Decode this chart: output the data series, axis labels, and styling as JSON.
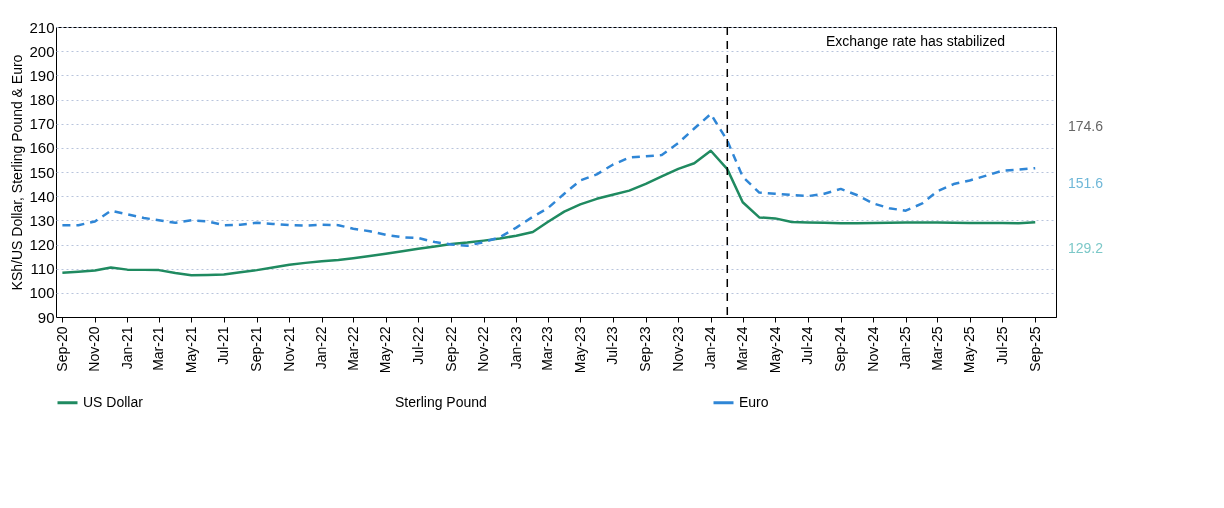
{
  "chart_data": {
    "type": "line",
    "ylabel": "KSh/US Dollar, Sterling Pound & Euro",
    "x": [
      "2020-09",
      "2020-10",
      "2020-11",
      "2020-12",
      "2021-01",
      "2021-02",
      "2021-03",
      "2021-04",
      "2021-05",
      "2021-06",
      "2021-07",
      "2021-08",
      "2021-09",
      "2021-10",
      "2021-11",
      "2021-12",
      "2022-01",
      "2022-02",
      "2022-03",
      "2022-04",
      "2022-05",
      "2022-06",
      "2022-07",
      "2022-08",
      "2022-09",
      "2022-10",
      "2022-11",
      "2022-12",
      "2023-01",
      "2023-02",
      "2023-03",
      "2023-04",
      "2023-05",
      "2023-06",
      "2023-07",
      "2023-08",
      "2023-09",
      "2023-10",
      "2023-11",
      "2023-12",
      "2024-01",
      "2024-02",
      "2024-03",
      "2024-04",
      "2024-05",
      "2024-06",
      "2024-07",
      "2024-08",
      "2024-09",
      "2024-10",
      "2024-11",
      "2024-12",
      "2025-01",
      "2025-02",
      "2025-03",
      "2025-04",
      "2025-05",
      "2025-06",
      "2025-07",
      "2025-08",
      "2025-09"
    ],
    "series": [
      {
        "name": "US Dollar",
        "color": "#1f8a60",
        "line_style": "solid",
        "values": [
          108.3,
          108.7,
          109.2,
          110.5,
          109.6,
          109.5,
          109.4,
          108.2,
          107.3,
          107.4,
          107.6,
          108.5,
          109.4,
          110.5,
          111.6,
          112.4,
          113.1,
          113.6,
          114.3,
          115.2,
          116.2,
          117.2,
          118.2,
          119.2,
          120.2,
          120.8,
          121.6,
          122.5,
          123.6,
          125.2,
          129.3,
          133.6,
          136.6,
          138.9,
          140.6,
          142.3,
          145.1,
          148.2,
          151.3,
          153.6,
          158.8,
          151.2,
          137.5,
          131.2,
          130.8,
          129.3,
          129.1,
          129,
          128.8,
          128.8,
          128.9,
          129,
          129.1,
          129.1,
          129.1,
          129,
          128.9,
          128.9,
          128.9,
          128.8,
          129.2
        ]
      },
      {
        "name": "Sterling Pound",
        "values": [
          null,
          null,
          null,
          null,
          null,
          null,
          null,
          null,
          null,
          null,
          null,
          null,
          null,
          null,
          null,
          null,
          null,
          null,
          null,
          null,
          null,
          null,
          null,
          null,
          null,
          null,
          null,
          null,
          null,
          null,
          null,
          null,
          null,
          null,
          null,
          null,
          null,
          null,
          null,
          null,
          null,
          null,
          null,
          null,
          null,
          null,
          null,
          null,
          null,
          null,
          null,
          null,
          null,
          null,
          null,
          null,
          null,
          null,
          null,
          null,
          null
        ]
      },
      {
        "name": "Euro",
        "color": "#2f86d6",
        "line_style": "dashed",
        "values": [
          128,
          128,
          129.5,
          134,
          132.5,
          131,
          130,
          129,
          130,
          129.5,
          128,
          128.2,
          129,
          128.5,
          128,
          127.8,
          128.2,
          128,
          126.5,
          125.5,
          124,
          123,
          122.7,
          121,
          120,
          119.5,
          121,
          123,
          127,
          131.5,
          135,
          141,
          146.5,
          149,
          153,
          156,
          156.5,
          157,
          162,
          168,
          174,
          163,
          148,
          141.5,
          141,
          140.5,
          140,
          141,
          143,
          140.5,
          137,
          135,
          134,
          137,
          142,
          145,
          146.5,
          148.5,
          150.5,
          151,
          151.6
        ]
      }
    ],
    "xlim": [
      "2020-08-20",
      "2025-10-10"
    ],
    "xticks": [
      {
        "value": "2020-09",
        "label": "Sep-20"
      },
      {
        "value": "2020-11",
        "label": "Nov-20"
      },
      {
        "value": "2021-01",
        "label": "Jan-21"
      },
      {
        "value": "2021-03",
        "label": "Mar-21"
      },
      {
        "value": "2021-05",
        "label": "May-21"
      },
      {
        "value": "2021-07",
        "label": "Jul-21"
      },
      {
        "value": "2021-09",
        "label": "Sep-21"
      },
      {
        "value": "2021-11",
        "label": "Nov-21"
      },
      {
        "value": "2022-01",
        "label": "Jan-22"
      },
      {
        "value": "2022-03",
        "label": "Mar-22"
      },
      {
        "value": "2022-05",
        "label": "May-22"
      },
      {
        "value": "2022-07",
        "label": "Jul-22"
      },
      {
        "value": "2022-09",
        "label": "Sep-22"
      },
      {
        "value": "2022-11",
        "label": "Nov-22"
      },
      {
        "value": "2023-01",
        "label": "Jan-23"
      },
      {
        "value": "2023-03",
        "label": "Mar-23"
      },
      {
        "value": "2023-05",
        "label": "May-23"
      },
      {
        "value": "2023-07",
        "label": "Jul-23"
      },
      {
        "value": "2023-09",
        "label": "Sep-23"
      },
      {
        "value": "2023-11",
        "label": "Nov-23"
      },
      {
        "value": "2024-01",
        "label": "Jan-24"
      },
      {
        "value": "2024-03",
        "label": "Mar-24"
      },
      {
        "value": "2024-05",
        "label": "May-24"
      },
      {
        "value": "2024-07",
        "label": "Jul-24"
      },
      {
        "value": "2024-09",
        "label": "Sep-24"
      },
      {
        "value": "2024-11",
        "label": "Nov-24"
      },
      {
        "value": "2025-01",
        "label": "Jan-25"
      },
      {
        "value": "2025-03",
        "label": "Mar-25"
      },
      {
        "value": "2025-05",
        "label": "May-25"
      },
      {
        "value": "2025-07",
        "label": "Jul-25"
      },
      {
        "value": "2025-09",
        "label": "Sep-25"
      }
    ],
    "ylim": [
      90,
      210
    ],
    "yticks": [
      90,
      100,
      110,
      120,
      130,
      140,
      150,
      160,
      170,
      180,
      190,
      200,
      210
    ],
    "grid": "y",
    "legend": "bottom",
    "ref_lines": [
      {
        "axis": "x",
        "value": "2024-02",
        "color": "#000000",
        "line_style": "dashed"
      }
    ],
    "annotations": [
      "Exchange rate has stabilized",
      "174.6",
      "151.6",
      "129.2"
    ]
  }
}
